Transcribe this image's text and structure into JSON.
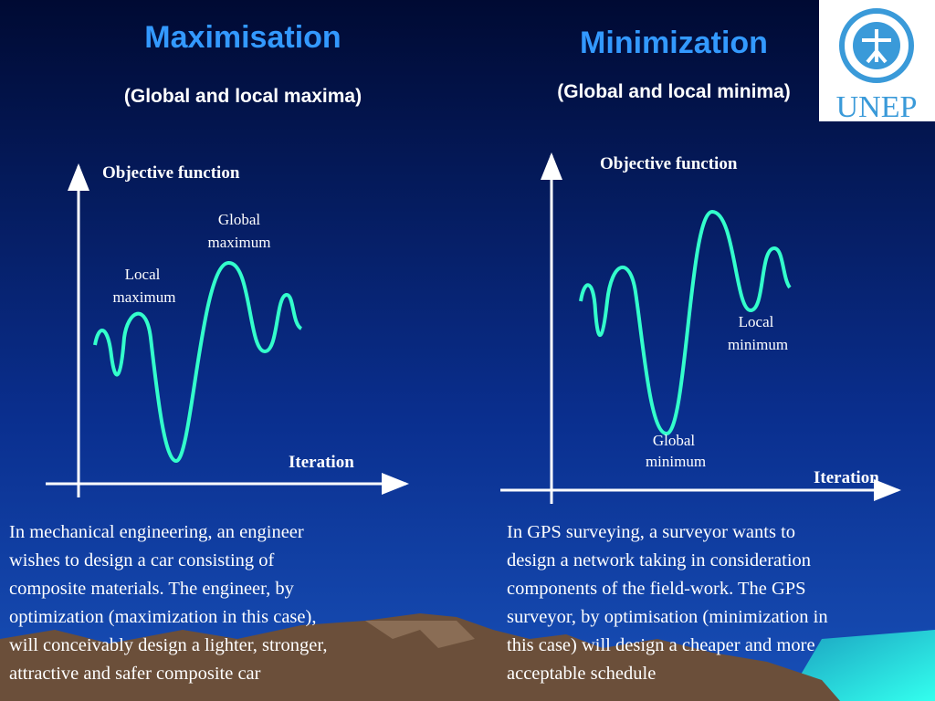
{
  "left": {
    "title": "Maximisation",
    "subtitle": "(Global and local maxima)",
    "y_label": "Objective function",
    "x_label": "Iteration",
    "global_label": [
      "Global",
      "maximum"
    ],
    "local_label": [
      "Local",
      "maximum"
    ],
    "body": [
      "In mechanical engineering, an engineer",
      "wishes to  design a car consisting of",
      "composite materials. The engineer, by",
      "optimization   (maximization in this case),",
      "will conceivably design a lighter, stronger,",
      "attractive and safer composite car"
    ]
  },
  "right": {
    "title": "Minimization",
    "subtitle": "(Global and local minima)",
    "y_label": "Objective function",
    "x_label": "Iteration",
    "global_label": [
      "Global",
      "minimum"
    ],
    "local_label": [
      "Local",
      "minimum"
    ],
    "body": [
      "In GPS surveying,  a surveyor wants to",
      "design a network  taking in  consideration",
      "components of the field-work. The GPS",
      "surveyor, by optimisation  (minimization in",
      "this case) will design a cheaper and  more",
      "acceptable schedule"
    ]
  },
  "logo": {
    "text": "UNEP"
  }
}
